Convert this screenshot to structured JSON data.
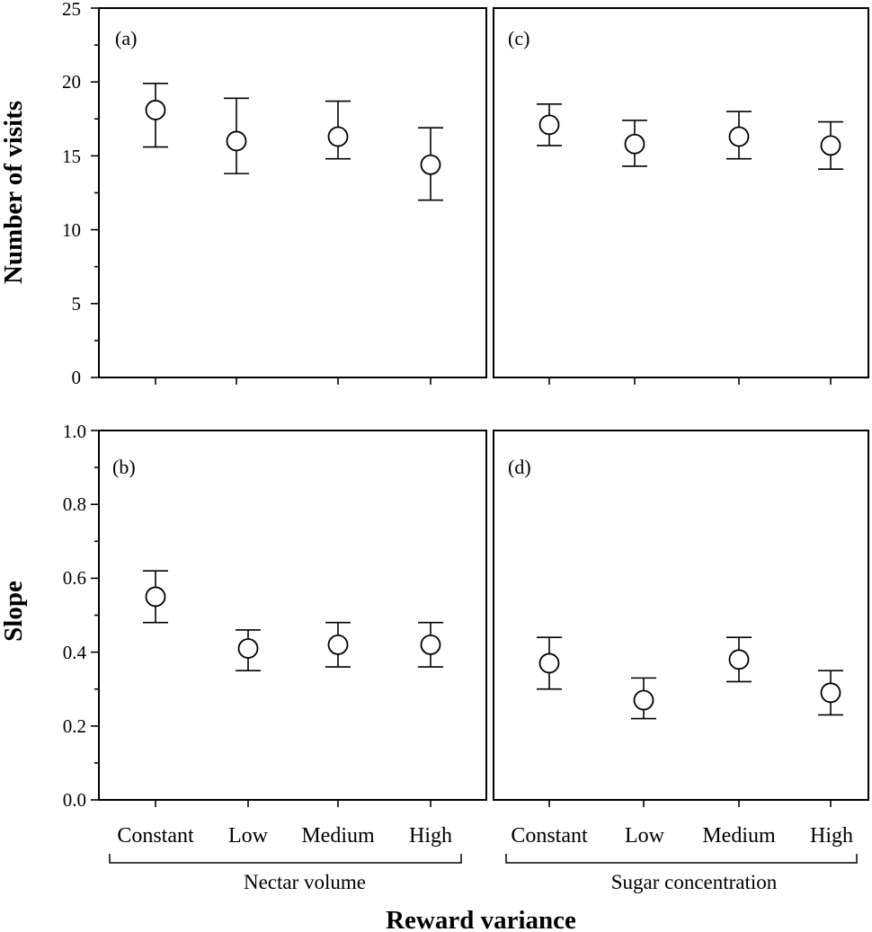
{
  "chart_data": [
    {
      "type": "scatter",
      "panel": "(a)",
      "group": "Nectar volume",
      "categories": [
        "Constant",
        "Low",
        "Medium",
        "High"
      ],
      "values": [
        18.1,
        16.0,
        16.3,
        14.4
      ],
      "err_low": [
        15.6,
        13.8,
        14.8,
        12.0
      ],
      "err_high": [
        19.9,
        18.9,
        18.7,
        16.9
      ],
      "ylabel": "Number of visits",
      "ylim": [
        0,
        25
      ],
      "yticks": [
        "0",
        "5",
        "10",
        "15",
        "20",
        "25"
      ]
    },
    {
      "type": "scatter",
      "panel": "(c)",
      "group": "Sugar concentration",
      "categories": [
        "Constant",
        "Low",
        "Medium",
        "High"
      ],
      "values": [
        17.1,
        15.8,
        16.3,
        15.7
      ],
      "err_low": [
        15.7,
        14.3,
        14.8,
        14.1
      ],
      "err_high": [
        18.5,
        17.4,
        18.0,
        17.3
      ],
      "ylim": [
        0,
        25
      ]
    },
    {
      "type": "scatter",
      "panel": "(b)",
      "group": "Nectar volume",
      "categories": [
        "Constant",
        "Low",
        "Medium",
        "High"
      ],
      "values": [
        0.55,
        0.41,
        0.42,
        0.42
      ],
      "err_low": [
        0.48,
        0.35,
        0.36,
        0.36
      ],
      "err_high": [
        0.62,
        0.46,
        0.48,
        0.48
      ],
      "ylabel": "Slope",
      "ylim": [
        0,
        1
      ],
      "yticks": [
        "0.0",
        "0.2",
        "0.4",
        "0.6",
        "0.8",
        "1.0"
      ]
    },
    {
      "type": "scatter",
      "panel": "(d)",
      "group": "Sugar concentration",
      "categories": [
        "Constant",
        "Low",
        "Medium",
        "High"
      ],
      "values": [
        0.37,
        0.27,
        0.38,
        0.29
      ],
      "err_low": [
        0.3,
        0.22,
        0.32,
        0.23
      ],
      "err_high": [
        0.44,
        0.33,
        0.44,
        0.35
      ],
      "ylim": [
        0,
        1
      ]
    }
  ],
  "xlabel": "Reward variance",
  "groups": [
    "Nectar volume",
    "Sugar concentration"
  ],
  "categories": [
    "Constant",
    "Low",
    "Medium",
    "High"
  ]
}
